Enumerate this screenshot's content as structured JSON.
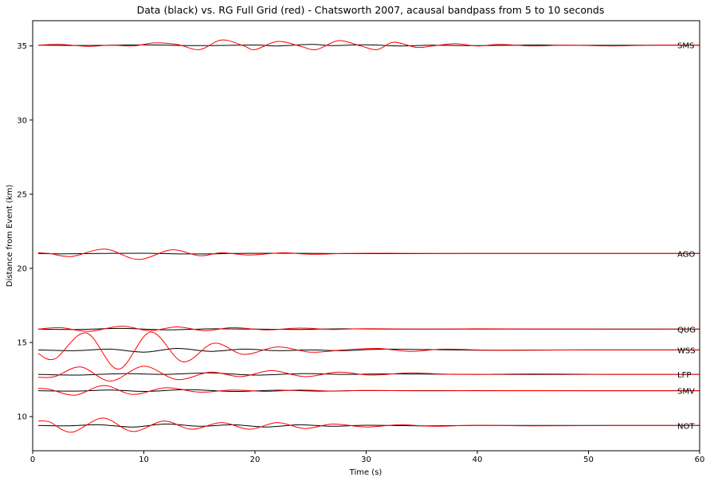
{
  "chart_data": {
    "type": "line",
    "title": "Data (black) vs. RG Full Grid (red) - Chatsworth 2007, acausal bandpass from 5 to 10 seconds",
    "xlabel": "Time (s)",
    "ylabel": "Distance from Event (km)",
    "xlim": [
      0,
      60
    ],
    "ylim": [
      7.7,
      36.7
    ],
    "xticks": [
      0,
      10,
      20,
      30,
      40,
      50,
      60
    ],
    "yticks": [
      10,
      15,
      20,
      25,
      30,
      35
    ],
    "grid": false,
    "legend": "none",
    "colors": {
      "data": "#000000",
      "synthetic": "#ff0000"
    },
    "stations": [
      {
        "name": "SMS",
        "baseline": 35.05,
        "data": {
          "x": [
            0.5,
            5,
            10,
            15,
            20,
            22,
            25,
            27,
            30,
            33,
            36,
            40,
            45,
            50,
            55,
            60
          ],
          "y": [
            35.05,
            35.03,
            35.07,
            35.02,
            35.06,
            35.0,
            35.1,
            35.02,
            35.08,
            35.0,
            35.05,
            35.02,
            35.06,
            35.04,
            35.05,
            35.05
          ]
        },
        "synthetic": {
          "x": [
            0.5,
            2.5,
            5,
            7,
            9,
            11,
            13,
            15,
            17,
            19,
            20,
            22,
            24,
            25.5,
            27.5,
            29.5,
            31,
            32.5,
            34.5,
            36,
            38,
            40,
            42,
            45,
            48,
            52,
            56,
            60
          ],
          "y": [
            35.05,
            35.1,
            34.97,
            35.05,
            35.0,
            35.2,
            35.1,
            34.75,
            35.4,
            35.0,
            34.75,
            35.3,
            35.0,
            34.75,
            35.35,
            35.0,
            34.75,
            35.25,
            34.9,
            35.0,
            35.15,
            35.0,
            35.1,
            35.0,
            35.05,
            35.0,
            35.05,
            35.05
          ]
        }
      },
      {
        "name": "AGO",
        "baseline": 21.0,
        "data": {
          "x": [
            0.5,
            3,
            6,
            10,
            14,
            18,
            22,
            26,
            30,
            40,
            50,
            60
          ],
          "y": [
            21.0,
            20.98,
            21.0,
            21.02,
            20.97,
            21.0,
            21.02,
            21.0,
            20.99,
            21.0,
            21.0,
            21.0
          ]
        },
        "synthetic": {
          "x": [
            0.5,
            1.5,
            3.5,
            6.5,
            9.5,
            12.5,
            15,
            17,
            19.5,
            22.5,
            25,
            28,
            32,
            36,
            45,
            60
          ],
          "y": [
            21.05,
            21.0,
            20.8,
            21.3,
            20.6,
            21.25,
            20.85,
            21.05,
            20.9,
            21.05,
            20.95,
            21.0,
            21.02,
            21.0,
            21.0,
            21.0
          ]
        }
      },
      {
        "name": "QUG",
        "baseline": 15.9,
        "data": {
          "x": [
            0.5,
            4,
            8,
            12,
            16,
            20,
            24,
            28,
            32,
            40,
            50,
            60
          ],
          "y": [
            15.9,
            15.88,
            15.95,
            15.85,
            15.92,
            15.9,
            15.88,
            15.92,
            15.9,
            15.9,
            15.9,
            15.9
          ]
        },
        "synthetic": {
          "x": [
            0.5,
            2.5,
            5,
            8,
            10.5,
            13,
            15.5,
            18,
            21,
            24,
            27,
            30,
            35,
            40,
            50,
            60
          ],
          "y": [
            15.9,
            16.0,
            15.75,
            16.1,
            15.8,
            16.05,
            15.8,
            16.0,
            15.85,
            15.97,
            15.88,
            15.93,
            15.9,
            15.92,
            15.9,
            15.9
          ]
        }
      },
      {
        "name": "WSS",
        "baseline": 14.5,
        "data": {
          "x": [
            0.5,
            4,
            7,
            10,
            13,
            16,
            19,
            22,
            25,
            28,
            32,
            40,
            50,
            60
          ],
          "y": [
            14.5,
            14.45,
            14.55,
            14.35,
            14.6,
            14.4,
            14.55,
            14.45,
            14.5,
            14.45,
            14.55,
            14.48,
            14.5,
            14.5
          ]
        },
        "synthetic": {
          "x": [
            0.5,
            2,
            4.8,
            7.7,
            10.6,
            13.5,
            16.3,
            19,
            22,
            25,
            28,
            31,
            34,
            37,
            42,
            50,
            60
          ],
          "y": [
            14.25,
            13.9,
            15.65,
            13.2,
            15.7,
            13.7,
            14.95,
            14.2,
            14.7,
            14.35,
            14.5,
            14.6,
            14.4,
            14.55,
            14.47,
            14.5,
            14.5
          ]
        }
      },
      {
        "name": "LFP",
        "baseline": 12.85,
        "data": {
          "x": [
            0.5,
            4,
            8,
            12,
            16,
            20,
            24,
            28,
            32,
            40,
            50,
            60
          ],
          "y": [
            12.85,
            12.8,
            12.9,
            12.85,
            12.95,
            12.8,
            12.9,
            12.85,
            12.88,
            12.85,
            12.85,
            12.85
          ]
        },
        "synthetic": {
          "x": [
            0.5,
            2,
            4.3,
            7,
            10,
            13,
            16,
            18.7,
            21.5,
            24.5,
            27.5,
            30.5,
            34,
            38,
            45,
            52,
            60
          ],
          "y": [
            12.65,
            12.7,
            13.35,
            12.4,
            13.4,
            12.5,
            13.0,
            12.7,
            13.1,
            12.7,
            13.0,
            12.8,
            12.95,
            12.85,
            12.88,
            12.85,
            12.85
          ]
        }
      },
      {
        "name": "SMV",
        "baseline": 11.75,
        "data": {
          "x": [
            0.5,
            4,
            7,
            10,
            14,
            18,
            22,
            26,
            30,
            40,
            50,
            60
          ],
          "y": [
            11.75,
            11.72,
            11.8,
            11.7,
            11.82,
            11.7,
            11.78,
            11.72,
            11.76,
            11.75,
            11.75,
            11.75
          ]
        },
        "synthetic": {
          "x": [
            0.5,
            1.5,
            3.8,
            6.4,
            9,
            12,
            15,
            18,
            21,
            24,
            27,
            30,
            35,
            40,
            50,
            60
          ],
          "y": [
            11.9,
            11.85,
            11.45,
            12.1,
            11.5,
            11.95,
            11.65,
            11.8,
            11.7,
            11.8,
            11.72,
            11.77,
            11.74,
            11.76,
            11.75,
            11.75
          ]
        }
      },
      {
        "name": "NOT",
        "baseline": 9.4,
        "data": {
          "x": [
            0.5,
            3,
            6,
            9,
            12,
            15,
            18,
            21,
            24,
            27,
            30,
            35,
            40,
            50,
            60
          ],
          "y": [
            9.4,
            9.38,
            9.45,
            9.3,
            9.5,
            9.35,
            9.45,
            9.3,
            9.45,
            9.35,
            9.42,
            9.38,
            9.4,
            9.4,
            9.4
          ]
        },
        "synthetic": {
          "x": [
            0.5,
            1.5,
            3.5,
            6.3,
            9,
            11.8,
            14.3,
            17,
            19.5,
            22,
            24.5,
            27,
            30,
            33,
            36,
            40,
            45,
            52,
            60
          ],
          "y": [
            9.7,
            9.65,
            8.95,
            9.9,
            9.0,
            9.7,
            9.15,
            9.6,
            9.15,
            9.6,
            9.2,
            9.5,
            9.3,
            9.45,
            9.35,
            9.42,
            9.38,
            9.4,
            9.4
          ]
        }
      }
    ]
  }
}
